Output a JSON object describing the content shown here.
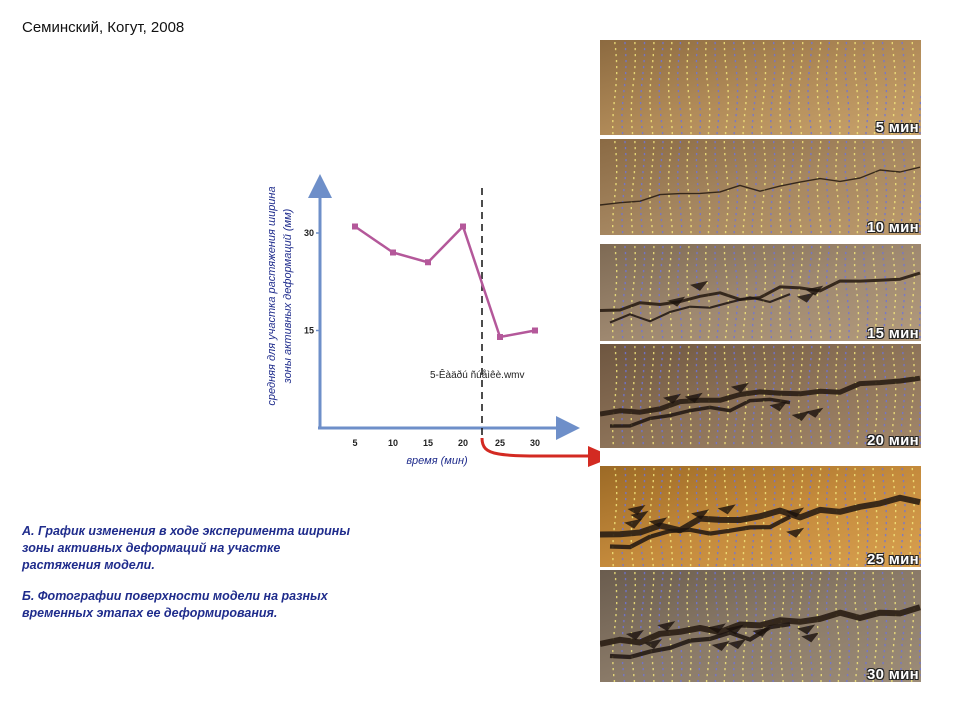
{
  "citation": "Семинский, Когут, 2008",
  "chart_data": {
    "type": "line",
    "x": [
      5,
      10,
      15,
      20,
      25,
      30
    ],
    "categories": [
      "5",
      "10",
      "15",
      "20",
      "25",
      "30"
    ],
    "values": [
      31,
      27,
      25.5,
      31,
      14,
      15
    ],
    "yticks": [
      "15",
      "30"
    ],
    "ylim": [
      0,
      38
    ],
    "xlabel": "время (мин)",
    "ylabel_line1": "средняя для участка растяжения ширина",
    "ylabel_line2": "зоны активных деформаций (мм)",
    "media_label": "5-Êàäðú ñúåìêè.wmv",
    "colors": {
      "line": "#b4589a",
      "axis": "#6e8fc9",
      "arrow": "#d32a22"
    }
  },
  "captions": {
    "a": "А. График изменения в ходе эксперимента ширины зоны активных  деформаций на участке растяжения модели.",
    "b": "Б. Фотографии поверхности модели на разных временных этапах ее деформирования."
  },
  "photos": [
    {
      "label": "5 мин",
      "stage": 0
    },
    {
      "label": "10 мин",
      "stage": 1
    },
    {
      "label": "15 мин",
      "stage": 2
    },
    {
      "label": "20 мин",
      "stage": 3
    },
    {
      "label": "25 мин",
      "stage": 4
    },
    {
      "label": "30 мин",
      "stage": 5
    }
  ]
}
